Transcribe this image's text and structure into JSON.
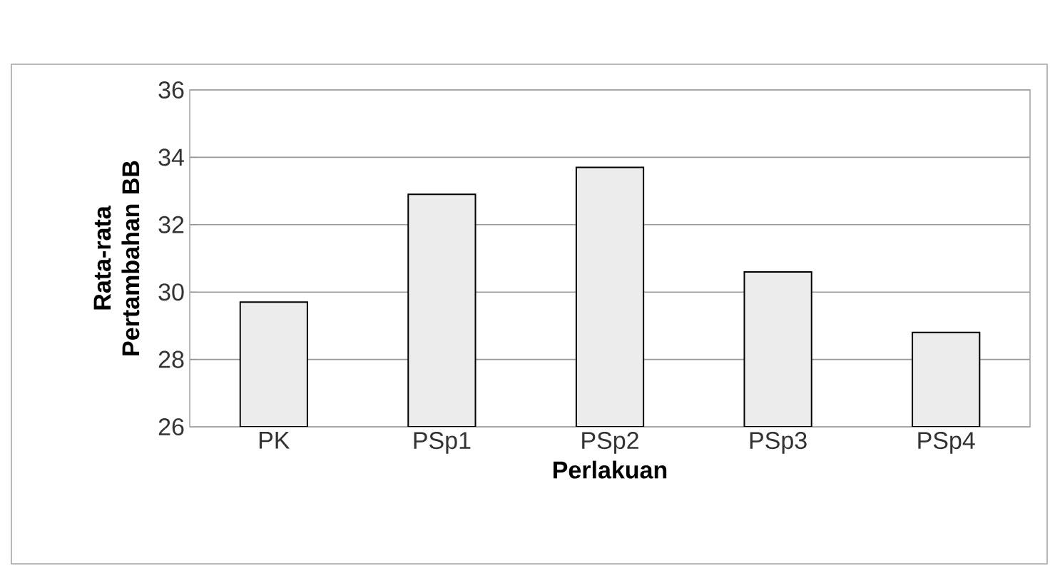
{
  "chart_data": {
    "type": "bar",
    "xlabel": "Perlakuan",
    "ylabel": "Rata-rata Pertambahan BB",
    "categories": [
      "PK",
      "PSp1",
      "PSp2",
      "PSp3",
      "PSp4"
    ],
    "values": [
      29.7,
      32.9,
      33.7,
      30.6,
      28.8
    ],
    "color": "#ececec",
    "ylim": [
      26,
      36
    ],
    "yticks": [
      26,
      28,
      30,
      32,
      34,
      36
    ],
    "grid": "y",
    "legend": false
  }
}
